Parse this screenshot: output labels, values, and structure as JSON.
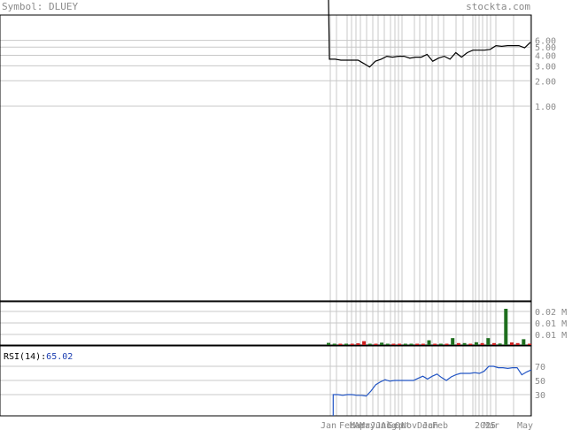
{
  "header": {
    "symbol_label": "Symbol: DLUEY",
    "site": "stockta.com"
  },
  "rsi_panel": {
    "label": "RSI(14):",
    "value": "65.02"
  },
  "colors": {
    "price": "#000000",
    "up": "#1e6e1e",
    "down": "#cc1f1f",
    "rsi": "#2255c4",
    "grid": "#c8c8c8",
    "text": "#8a8a8a"
  },
  "chart_data": [
    {
      "type": "line",
      "title": "",
      "scale": "log",
      "y_ticks": [
        "6.00",
        "5.00",
        "4.00",
        "3.00",
        "2.00",
        "1.00"
      ],
      "x_ticks": [
        "Jan",
        "Feb",
        "Mar",
        "Apr",
        "May",
        "Jun",
        "Jul",
        "Aug",
        "Sep",
        "Oct",
        "Nov",
        "Dec",
        "Jan",
        "Feb",
        "Mar",
        "2025",
        "May"
      ],
      "series": [
        {
          "values": [
            300,
            3.6,
            3.5,
            3.5,
            3.5,
            3.5,
            3.2,
            2.9,
            3.4,
            3.6,
            3.9,
            3.8,
            3.9,
            3.9,
            3.7,
            3.8,
            3.8,
            4.1,
            3.4,
            3.7,
            3.9,
            3.6,
            4.3,
            3.8,
            4.3,
            4.6,
            4.6,
            4.6,
            4.7,
            5.2,
            5.1,
            5.2,
            5.2,
            5.2,
            4.9,
            5.7
          ]
        }
      ]
    },
    {
      "type": "bar",
      "title": "",
      "y_ticks": [
        "0.02 M",
        "0.01 M",
        "0.01 M"
      ],
      "series": [
        {
          "values": [
            0.001,
            0.0003,
            0.0004,
            0.0003,
            0.0001,
            0.0008,
            0.0018,
            0.0003,
            0.0001,
            0.0011,
            0.0001,
            0.0001,
            0.0003,
            0.0002,
            0.0006,
            0.0006,
            0.0002,
            0.0022,
            0.0004,
            0.0006,
            0.0004,
            0.0032,
            0.0009,
            0.0009,
            0.0004,
            0.0013,
            0.0009,
            0.0032,
            0.0009,
            0.0007,
            0.0167,
            0.0012,
            0.0009,
            0.0027,
            0.0004
          ]
        }
      ],
      "up": [
        true,
        true,
        false,
        true,
        false,
        false,
        false,
        true,
        false,
        true,
        true,
        false,
        false,
        true,
        true,
        false,
        false,
        true,
        false,
        true,
        false,
        true,
        false,
        true,
        false,
        true,
        false,
        true,
        false,
        true,
        true,
        false,
        false,
        true,
        false
      ]
    },
    {
      "type": "line",
      "title": "",
      "ylim": [
        0,
        100
      ],
      "y_ticks": [
        "70",
        "50",
        "30"
      ],
      "series": [
        {
          "values": [
            null,
            30,
            30,
            29,
            30,
            30,
            29,
            29,
            28,
            35,
            44,
            48,
            51,
            49,
            50,
            50,
            50,
            50,
            50,
            53,
            56,
            52,
            56,
            59,
            54,
            50,
            55,
            58,
            60,
            60,
            60,
            61,
            60,
            63,
            70,
            70,
            68,
            68,
            67,
            68,
            68,
            58,
            62,
            65
          ]
        }
      ]
    }
  ]
}
